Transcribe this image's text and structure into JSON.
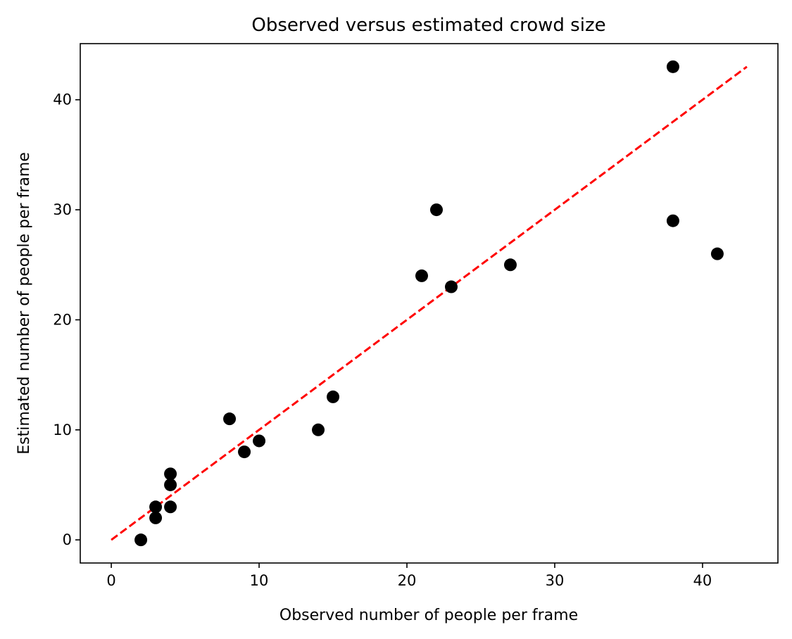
{
  "chart_data": {
    "type": "scatter",
    "title": "Observed versus estimated crowd size",
    "xlabel": "Observed number of people per frame",
    "ylabel": "Estimated number of people per frame",
    "xlim": [
      -2.1,
      45.1
    ],
    "ylim": [
      -2.1,
      45.1
    ],
    "xticks": [
      0,
      10,
      20,
      30,
      40
    ],
    "yticks": [
      0,
      10,
      20,
      30,
      40
    ],
    "grid": false,
    "legend": false,
    "series": [
      {
        "kind": "points",
        "color": "#000000",
        "points": [
          {
            "x": 2,
            "y": 0
          },
          {
            "x": 3,
            "y": 2
          },
          {
            "x": 3,
            "y": 3
          },
          {
            "x": 4,
            "y": 3
          },
          {
            "x": 4,
            "y": 5
          },
          {
            "x": 4,
            "y": 6
          },
          {
            "x": 8,
            "y": 11
          },
          {
            "x": 9,
            "y": 8
          },
          {
            "x": 10,
            "y": 9
          },
          {
            "x": 14,
            "y": 10
          },
          {
            "x": 15,
            "y": 13
          },
          {
            "x": 21,
            "y": 24
          },
          {
            "x": 22,
            "y": 30
          },
          {
            "x": 23,
            "y": 23
          },
          {
            "x": 27,
            "y": 25
          },
          {
            "x": 38,
            "y": 43
          },
          {
            "x": 38,
            "y": 29
          },
          {
            "x": 41,
            "y": 26
          }
        ]
      },
      {
        "kind": "reference-line",
        "style": "dashed",
        "color": "#ff0000",
        "x": [
          0,
          43
        ],
        "y": [
          0,
          43
        ]
      }
    ]
  }
}
